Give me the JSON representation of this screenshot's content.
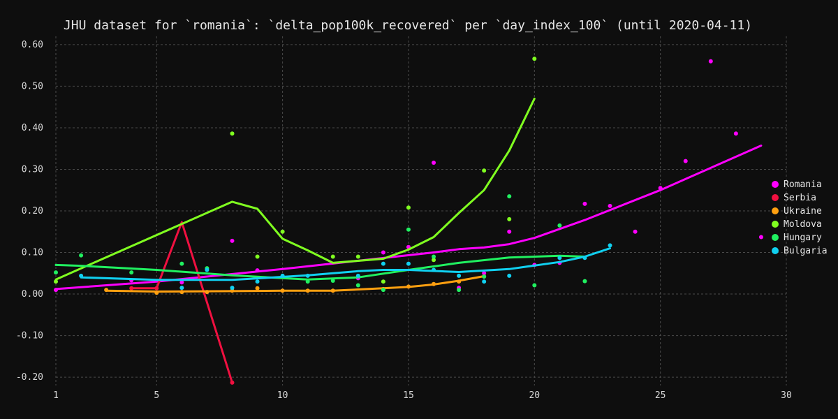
{
  "chart_data": {
    "type": "scatter",
    "title": "JHU dataset for `romania`: `delta_pop100k_recovered` per `day_index_100` (until 2020-04-11)",
    "xlabel": "",
    "ylabel": "",
    "xlim": [
      1,
      30
    ],
    "ylim": [
      -0.22,
      0.62
    ],
    "x_ticks": [
      1,
      5,
      10,
      15,
      20,
      25,
      30
    ],
    "y_ticks": [
      -0.2,
      -0.1,
      0.0,
      0.1,
      0.2,
      0.3,
      0.4,
      0.5,
      0.6
    ],
    "grid": true,
    "legend_position": "right",
    "series": [
      {
        "name": "Romania",
        "color": "#ff00ff",
        "points": [
          [
            1,
            0.01
          ],
          [
            4,
            0.033
          ],
          [
            6,
            0.028
          ],
          [
            8,
            0.128
          ],
          [
            9,
            0.057
          ],
          [
            13,
            0.038
          ],
          [
            14,
            0.1
          ],
          [
            15,
            0.113
          ],
          [
            16,
            0.316
          ],
          [
            17,
            0.015
          ],
          [
            18,
            0.05
          ],
          [
            19,
            0.15
          ],
          [
            20,
            0.07
          ],
          [
            21,
            0.075
          ],
          [
            22,
            0.217
          ],
          [
            23,
            0.212
          ],
          [
            24,
            0.15
          ],
          [
            25,
            0.255
          ],
          [
            26,
            0.32
          ],
          [
            27,
            0.56
          ],
          [
            28,
            0.386
          ],
          [
            29,
            0.137
          ]
        ],
        "trend": [
          [
            1,
            0.012
          ],
          [
            5,
            0.03
          ],
          [
            10,
            0.06
          ],
          [
            13,
            0.08
          ],
          [
            16,
            0.1
          ],
          [
            17,
            0.108
          ],
          [
            18,
            0.112
          ],
          [
            19,
            0.12
          ],
          [
            20,
            0.135
          ],
          [
            22,
            0.178
          ],
          [
            25,
            0.25
          ],
          [
            29,
            0.357
          ]
        ]
      },
      {
        "name": "Serbia",
        "color": "#f01040",
        "points": [
          [
            4,
            0.014
          ],
          [
            5,
            0.014
          ],
          [
            8,
            -0.213
          ]
        ],
        "trend": [
          [
            4,
            0.014
          ],
          [
            5,
            0.014
          ],
          [
            6,
            0.173
          ],
          [
            8,
            -0.213
          ]
        ]
      },
      {
        "name": "Ukraine",
        "color": "#ffa010",
        "points": [
          [
            3,
            0.01
          ],
          [
            5,
            0.003
          ],
          [
            6,
            0.005
          ],
          [
            7,
            0.005
          ],
          [
            8,
            0.008
          ],
          [
            9,
            0.014
          ],
          [
            10,
            0.008
          ],
          [
            11,
            0.008
          ],
          [
            12,
            0.008
          ],
          [
            14,
            0.012
          ],
          [
            15,
            0.018
          ],
          [
            16,
            0.024
          ],
          [
            17,
            0.03
          ],
          [
            18,
            0.042
          ]
        ],
        "trend": [
          [
            3,
            0.008
          ],
          [
            5,
            0.006
          ],
          [
            8,
            0.007
          ],
          [
            10,
            0.008
          ],
          [
            12,
            0.008
          ],
          [
            13,
            0.011
          ],
          [
            14,
            0.014
          ],
          [
            15,
            0.017
          ],
          [
            16,
            0.023
          ],
          [
            17,
            0.032
          ],
          [
            18,
            0.043
          ]
        ]
      },
      {
        "name": "Moldova",
        "color": "#80ff20",
        "points": [
          [
            1,
            0.03
          ],
          [
            8,
            0.386
          ],
          [
            9,
            0.09
          ],
          [
            10,
            0.15
          ],
          [
            12,
            0.09
          ],
          [
            13,
            0.09
          ],
          [
            14,
            0.03
          ],
          [
            15,
            0.208
          ],
          [
            16,
            0.082
          ],
          [
            18,
            0.297
          ],
          [
            19,
            0.18
          ],
          [
            20,
            0.566
          ]
        ],
        "trend": [
          [
            1,
            0.035
          ],
          [
            8,
            0.222
          ],
          [
            9,
            0.205
          ],
          [
            10,
            0.133
          ],
          [
            11,
            0.105
          ],
          [
            12,
            0.075
          ],
          [
            14,
            0.085
          ],
          [
            15,
            0.107
          ],
          [
            16,
            0.137
          ],
          [
            17,
            0.195
          ],
          [
            18,
            0.25
          ],
          [
            19,
            0.345
          ],
          [
            20,
            0.47
          ]
        ]
      },
      {
        "name": "Hungary",
        "color": "#20f060",
        "points": [
          [
            1,
            0.052
          ],
          [
            2,
            0.093
          ],
          [
            4,
            0.052
          ],
          [
            6,
            0.073
          ],
          [
            7,
            0.062
          ],
          [
            11,
            0.03
          ],
          [
            12,
            0.032
          ],
          [
            13,
            0.021
          ],
          [
            14,
            0.01
          ],
          [
            15,
            0.155
          ],
          [
            16,
            0.09
          ],
          [
            17,
            0.01
          ],
          [
            18,
            0.042
          ],
          [
            19,
            0.235
          ],
          [
            20,
            0.021
          ],
          [
            21,
            0.165
          ],
          [
            22,
            0.031
          ]
        ],
        "trend": [
          [
            1,
            0.07
          ],
          [
            2,
            0.068
          ],
          [
            5,
            0.058
          ],
          [
            8,
            0.045
          ],
          [
            11,
            0.035
          ],
          [
            13,
            0.04
          ],
          [
            15,
            0.058
          ],
          [
            17,
            0.075
          ],
          [
            19,
            0.088
          ],
          [
            21,
            0.092
          ],
          [
            22,
            0.09
          ]
        ]
      },
      {
        "name": "Bulgaria",
        "color": "#10d0f0",
        "points": [
          [
            2,
            0.044
          ],
          [
            6,
            0.015
          ],
          [
            7,
            0.058
          ],
          [
            8,
            0.015
          ],
          [
            9,
            0.03
          ],
          [
            10,
            0.044
          ],
          [
            11,
            0.044
          ],
          [
            13,
            0.044
          ],
          [
            14,
            0.073
          ],
          [
            15,
            0.073
          ],
          [
            16,
            0.058
          ],
          [
            17,
            0.044
          ],
          [
            18,
            0.03
          ],
          [
            19,
            0.044
          ],
          [
            21,
            0.087
          ],
          [
            22,
            0.087
          ],
          [
            23,
            0.117
          ]
        ],
        "trend": [
          [
            2,
            0.04
          ],
          [
            5,
            0.034
          ],
          [
            8,
            0.034
          ],
          [
            11,
            0.045
          ],
          [
            13,
            0.055
          ],
          [
            14,
            0.058
          ],
          [
            15,
            0.058
          ],
          [
            17,
            0.053
          ],
          [
            19,
            0.06
          ],
          [
            21,
            0.077
          ],
          [
            22,
            0.09
          ],
          [
            23,
            0.11
          ]
        ]
      }
    ]
  }
}
